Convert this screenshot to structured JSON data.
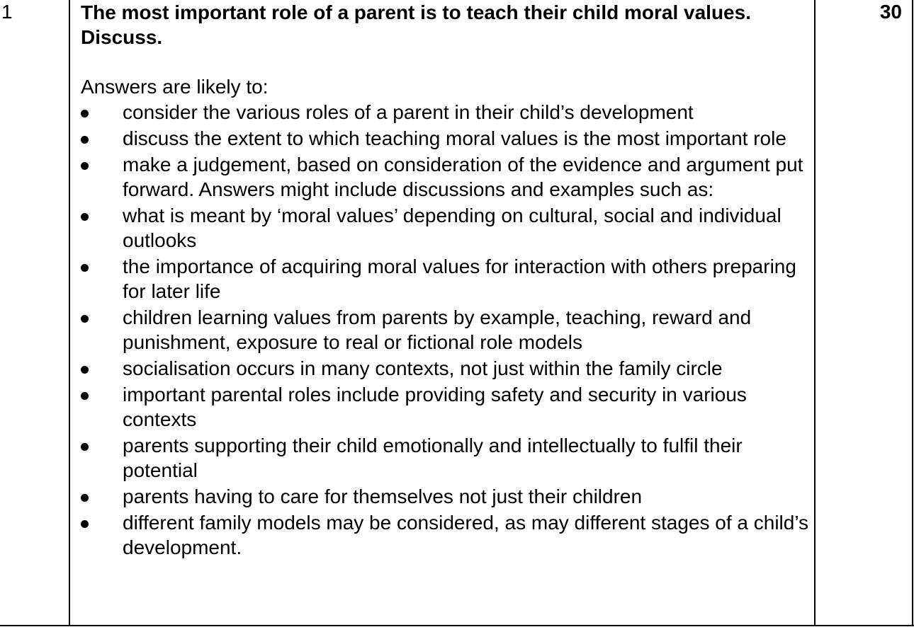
{
  "row": {
    "number": "1",
    "question": "The most important role of a parent is to teach their child moral values. Discuss.",
    "marks": "30",
    "intro": "Answers are likely to:",
    "points": [
      "consider the various roles of a parent in their child’s development",
      "discuss the extent to which teaching moral values is the most important role",
      "make a judgement, based on consideration of the evidence and argument put forward. Answers might include discussions and examples such as:",
      "what is meant by ‘moral values’ depending on cultural, social and individual outlooks",
      "the importance of acquiring moral values for interaction with others preparing for later life",
      "children learning values from parents by example, teaching, reward and punishment, exposure to real or fictional role models",
      "socialisation occurs in many contexts, not just within the family circle",
      "important parental roles include providing safety and security in various contexts",
      "parents supporting their child emotionally and intellectually to fulfil their potential",
      "parents having to care for themselves not just their children",
      "different family models may be considered, as may different stages of a child’s development."
    ]
  }
}
